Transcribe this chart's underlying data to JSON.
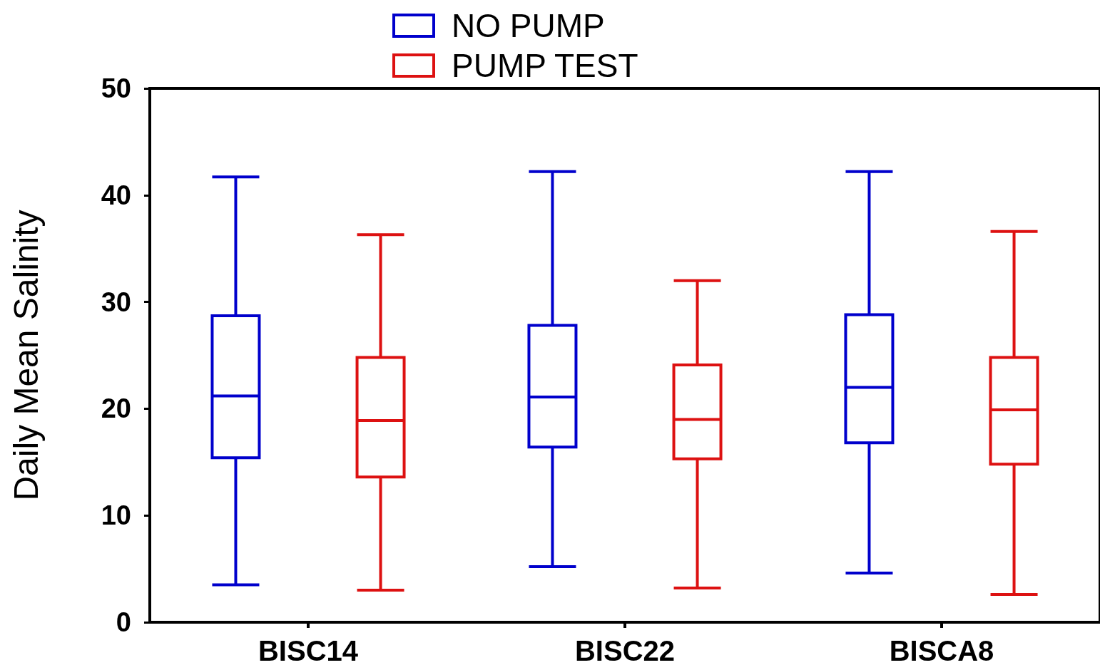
{
  "chart_data": {
    "type": "box",
    "ylabel": "Daily Mean Salinity",
    "categories": [
      "BISC14",
      "BISC22",
      "BISCA8"
    ],
    "ylim": [
      0,
      50
    ],
    "yticks": [
      0,
      10,
      20,
      30,
      40,
      50
    ],
    "grid": false,
    "legend": "top",
    "series": [
      {
        "name": "NO PUMP",
        "color": "#0000cc",
        "boxes": [
          {
            "low": 3.5,
            "q1": 15.4,
            "median": 21.2,
            "q3": 28.7,
            "high": 41.7
          },
          {
            "low": 5.2,
            "q1": 16.4,
            "median": 21.1,
            "q3": 27.8,
            "high": 42.2
          },
          {
            "low": 4.6,
            "q1": 16.8,
            "median": 22.0,
            "q3": 28.8,
            "high": 42.2
          }
        ]
      },
      {
        "name": "PUMP TEST",
        "color": "#dd1111",
        "boxes": [
          {
            "low": 3.0,
            "q1": 13.6,
            "median": 18.9,
            "q3": 24.8,
            "high": 36.3
          },
          {
            "low": 3.2,
            "q1": 15.3,
            "median": 19.0,
            "q3": 24.1,
            "high": 32.0
          },
          {
            "low": 2.6,
            "q1": 14.8,
            "median": 19.9,
            "q3": 24.8,
            "high": 36.6
          }
        ]
      }
    ]
  }
}
